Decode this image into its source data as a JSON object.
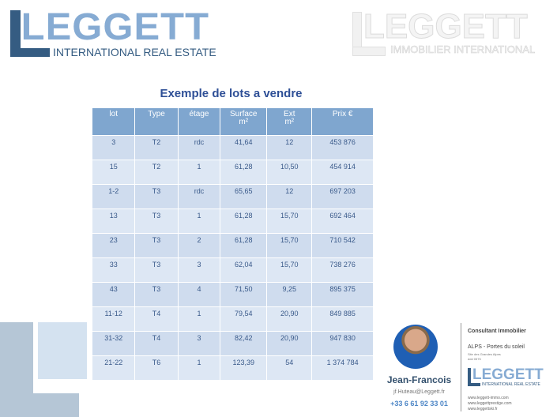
{
  "logo_left": {
    "brand": "LEGGETT",
    "tagline": "INTERNATIONAL REAL ESTATE"
  },
  "logo_right": {
    "brand": "LEGGETT",
    "tagline": "IMMOBILIER INTERNATIONAL"
  },
  "title": "Exemple de lots a vendre",
  "table": {
    "headers": [
      {
        "l1": "lot",
        "l2": ""
      },
      {
        "l1": "Type",
        "l2": ""
      },
      {
        "l1": "étage",
        "l2": ""
      },
      {
        "l1": "Surface",
        "l2": "m²"
      },
      {
        "l1": "Ext",
        "l2": "m²"
      },
      {
        "l1": "Prix €",
        "l2": ""
      }
    ],
    "rows": [
      [
        "3",
        "T2",
        "rdc",
        "41,64",
        "12",
        "453 876"
      ],
      [
        "15",
        "T2",
        "1",
        "61,28",
        "10,50",
        "454 914"
      ],
      [
        "1-2",
        "T3",
        "rdc",
        "65,65",
        "12",
        "697 203"
      ],
      [
        "13",
        "T3",
        "1",
        "61,28",
        "15,70",
        "692 464"
      ],
      [
        "23",
        "T3",
        "2",
        "61,28",
        "15,70",
        "710 542"
      ],
      [
        "33",
        "T3",
        "3",
        "62,04",
        "15,70",
        "738 276"
      ],
      [
        "43",
        "T3",
        "4",
        "71,50",
        "9,25",
        "895 375"
      ],
      [
        "11-12",
        "T4",
        "1",
        "79,54",
        "20,90",
        "849 885"
      ],
      [
        "31-32",
        "T4",
        "3",
        "82,42",
        "20,90",
        "947 830"
      ],
      [
        "21-22",
        "T6",
        "1",
        "123,39",
        "54",
        "1 374 784"
      ]
    ]
  },
  "card": {
    "name": "Jean-Francois",
    "email": "jf.Huteau@Leggett.fr",
    "phone": "+33 6 61 92 33 01",
    "role": "Consultant Immobilier",
    "area": "ALPS - Portes du soleil",
    "sub1": "Site des Grandes Alpes",
    "sub2": "ddd 0575",
    "logo_brand": "LEGGETT",
    "logo_tagline": "INTERNATIONAL REAL ESTATE",
    "links": [
      "www.leggett-immo.com",
      "www.leggettprestige.com",
      "www.leggettski.fr"
    ]
  },
  "colors": {
    "title": "#2e4f96",
    "header": "#7fa6cf",
    "row": "#cfdcee",
    "brand_light": "#86abd3",
    "brand_dark": "#355c82"
  }
}
